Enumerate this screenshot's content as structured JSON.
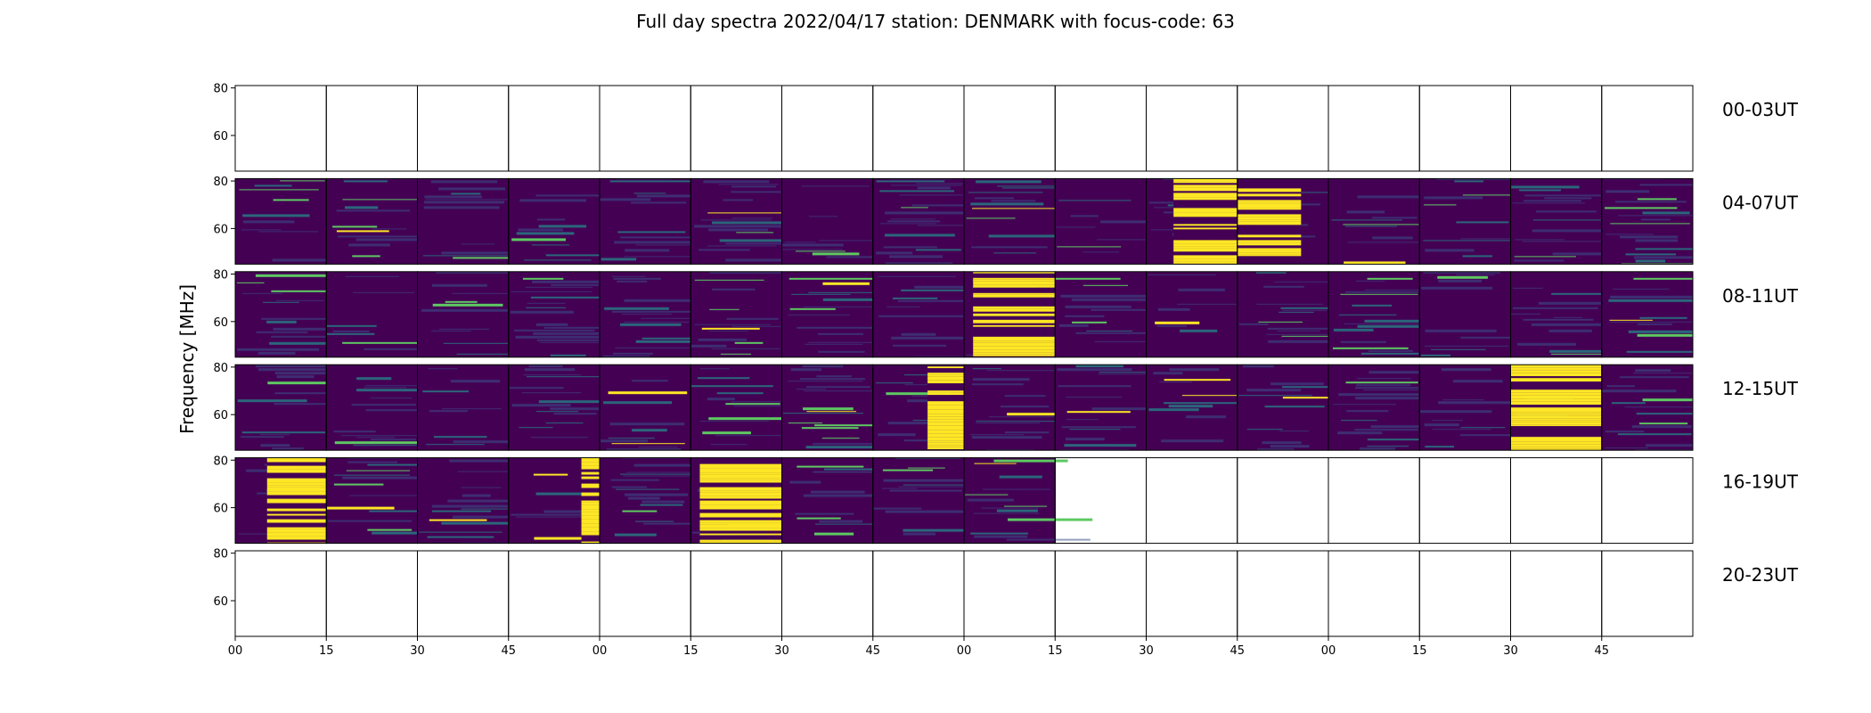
{
  "chart_data": {
    "type": "heatmap",
    "title": "Full day spectra 2022/04/17 station: DENMARK with focus-code: 63",
    "ylabel": "Frequency [MHz]",
    "xlabel": "",
    "ylim": [
      45,
      81
    ],
    "y_ticks": [
      60,
      80
    ],
    "x_tick_labels": [
      "00",
      "15",
      "30",
      "45",
      "00",
      "15",
      "30",
      "45",
      "00",
      "15",
      "30",
      "45",
      "00",
      "15",
      "30",
      "45"
    ],
    "colormap": [
      "#440154",
      "#3b528b",
      "#21918c",
      "#5ec962",
      "#fde725"
    ],
    "panels_per_row": 16,
    "rows": [
      {
        "label": "00-03UT",
        "panels_with_data": 0,
        "strong_bursts": []
      },
      {
        "label": "04-07UT",
        "panels_with_data": 16,
        "strong_bursts": [
          {
            "panel": 10,
            "start": 0.3,
            "end": 1.0
          },
          {
            "panel": 11,
            "start": 0.0,
            "end": 0.7
          }
        ]
      },
      {
        "label": "08-11UT",
        "panels_with_data": 16,
        "strong_bursts": [
          {
            "panel": 8,
            "start": 0.1,
            "end": 1.0
          }
        ]
      },
      {
        "label": "12-15UT",
        "panels_with_data": 16,
        "strong_bursts": [
          {
            "panel": 7,
            "start": 0.6,
            "end": 1.0
          },
          {
            "panel": 14,
            "start": 0.0,
            "end": 1.0
          }
        ]
      },
      {
        "label": "16-19UT",
        "panels_with_data": 9,
        "strong_bursts": [
          {
            "panel": 0,
            "start": 0.35,
            "end": 1.0
          },
          {
            "panel": 3,
            "start": 0.8,
            "end": 1.0
          },
          {
            "panel": 5,
            "start": 0.1,
            "end": 1.0
          }
        ]
      },
      {
        "label": "20-23UT",
        "panels_with_data": 0,
        "strong_bursts": []
      }
    ]
  }
}
